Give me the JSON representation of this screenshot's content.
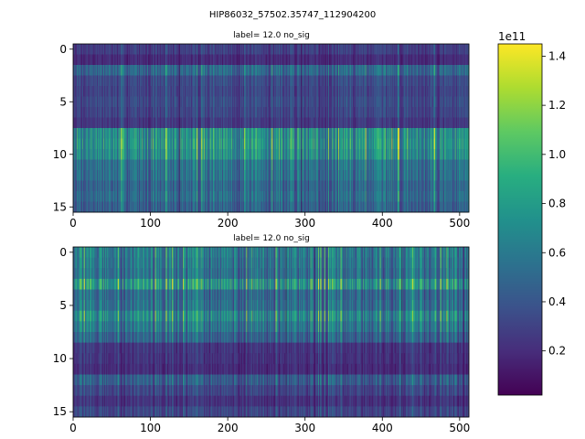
{
  "figure": {
    "suptitle": "HIP86032_57502.35747_112904200"
  },
  "chart_data": [
    {
      "type": "heatmap",
      "title": "label= 12.0 no_sig",
      "xlabel": "",
      "ylabel": "",
      "x_ticks": [
        0,
        100,
        200,
        300,
        400,
        500
      ],
      "y_ticks": [
        0,
        5,
        10,
        15
      ],
      "xlim": [
        0,
        512
      ],
      "ylim": [
        16,
        0
      ],
      "n_rows": 16,
      "n_cols": 512,
      "row_levels": [
        0.18,
        0.12,
        0.33,
        0.22,
        0.2,
        0.22,
        0.2,
        0.16,
        0.48,
        0.5,
        0.47,
        0.37,
        0.36,
        0.32,
        0.34,
        0.3
      ],
      "bright_columns": [
        137,
        160,
        166,
        257,
        378,
        421,
        467
      ],
      "dark_columns": [
        137,
        295
      ]
    },
    {
      "type": "heatmap",
      "title": "label= 12.0 no_sig",
      "xlabel": "",
      "ylabel": "",
      "x_ticks": [
        0,
        100,
        200,
        300,
        400,
        500
      ],
      "y_ticks": [
        0,
        5,
        10,
        15
      ],
      "xlim": [
        0,
        512
      ],
      "ylim": [
        16,
        0
      ],
      "n_rows": 16,
      "n_cols": 512,
      "row_levels": [
        0.4,
        0.38,
        0.36,
        0.5,
        0.33,
        0.35,
        0.45,
        0.38,
        0.3,
        0.15,
        0.14,
        0.12,
        0.28,
        0.2,
        0.14,
        0.2
      ],
      "bright_columns": [
        14,
        120,
        128,
        224,
        262,
        320,
        346
      ],
      "dark_columns": [
        275,
        312,
        425,
        505
      ]
    }
  ],
  "colorbar": {
    "colormap": "viridis",
    "multiplier": "1e11",
    "range": [
      0.02,
      1.45
    ],
    "ticks": [
      "0.2",
      "0.4",
      "0.6",
      "0.8",
      "1.0",
      "1.2",
      "1.4"
    ],
    "tick_values": [
      0.2,
      0.4,
      0.6,
      0.8,
      1.0,
      1.2,
      1.4
    ]
  }
}
